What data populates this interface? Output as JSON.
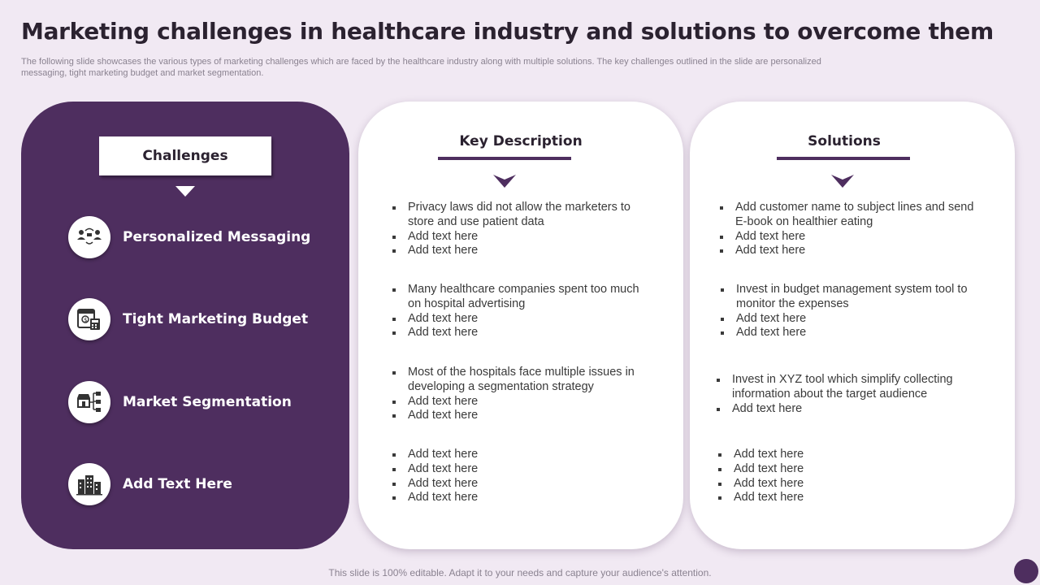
{
  "title": "Marketing challenges in healthcare industry and solutions to overcome them",
  "subtitle": "The following slide showcases the various types of marketing challenges which are faced by the healthcare industry along with multiple solutions. The key challenges outlined in the slide are personalized messaging, tight marketing budget and market segmentation.",
  "challenges": {
    "heading": "Challenges",
    "items": [
      {
        "label": "Personalized Messaging",
        "icon": "people-messaging-icon"
      },
      {
        "label": "Tight Marketing Budget",
        "icon": "budget-calculator-icon"
      },
      {
        "label": "Market Segmentation",
        "icon": "store-segmentation-icon"
      },
      {
        "label": "Add Text Here",
        "icon": "buildings-icon"
      }
    ]
  },
  "key_description": {
    "heading": "Key Description",
    "blocks": [
      [
        "Privacy laws did not allow the marketers to store and use patient data",
        "Add text here",
        "Add text here"
      ],
      [
        "Many healthcare companies spent too much on hospital advertising",
        "Add text here",
        "Add text here"
      ],
      [
        "Most of the hospitals face multiple issues in developing  a segmentation strategy",
        "Add text here",
        "Add text here"
      ],
      [
        "Add text here",
        "Add text here",
        "Add text here",
        "Add text here"
      ]
    ]
  },
  "solutions": {
    "heading": "Solutions",
    "blocks": [
      [
        "Add customer name to subject lines and send E-book on healthier eating",
        "Add text here",
        "Add text here"
      ],
      [
        "Invest in budget management system tool to monitor the expenses",
        "Add text here",
        "Add text here"
      ],
      [
        "Invest in XYZ  tool which simplify collecting information about the target audience",
        "Add text here"
      ],
      [
        "Add text here",
        "Add text here",
        "Add text here",
        "Add text here"
      ]
    ]
  },
  "footer": "This slide is 100% editable. Adapt it to your needs and capture your audience's attention.",
  "colors": {
    "accent": "#4e2e5f",
    "background": "#f1e9f3"
  }
}
